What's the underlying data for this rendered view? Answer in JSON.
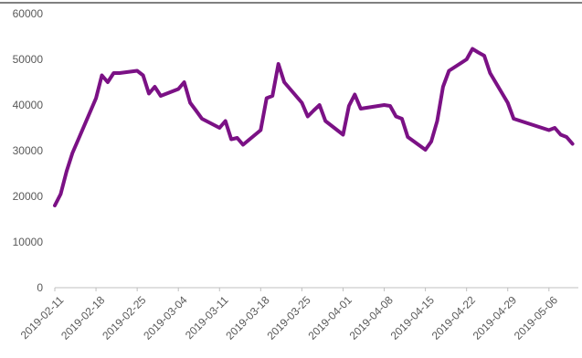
{
  "chart_data": {
    "type": "line",
    "title": "",
    "xlabel": "",
    "ylabel": "",
    "ylim": [
      0,
      60000
    ],
    "yticks": [
      0,
      10000,
      20000,
      30000,
      40000,
      50000,
      60000
    ],
    "y_tick_labels": [
      "0",
      "10000",
      "20000",
      "30000",
      "40000",
      "50000",
      "60000"
    ],
    "xlim": [
      "2019-02-11",
      "2019-05-11"
    ],
    "x_tick_labels": [
      "2019-02-11",
      "2019-02-18",
      "2019-02-25",
      "2019-03-04",
      "2019-03-11",
      "2019-03-18",
      "2019-03-25",
      "2019-04-01",
      "2019-04-08",
      "2019-04-15",
      "2019-04-22",
      "2019-04-29",
      "2019-05-06"
    ],
    "grid": false,
    "legend": "none",
    "line_color": "#7B1185",
    "series": [
      {
        "x": [
          "2019-02-11",
          "2019-02-12",
          "2019-02-13",
          "2019-02-14",
          "2019-02-15",
          "2019-02-18",
          "2019-02-19",
          "2019-02-20",
          "2019-02-21",
          "2019-02-22",
          "2019-02-25",
          "2019-02-26",
          "2019-02-27",
          "2019-02-28",
          "2019-03-01",
          "2019-03-04",
          "2019-03-05",
          "2019-03-06",
          "2019-03-07",
          "2019-03-08",
          "2019-03-11",
          "2019-03-12",
          "2019-03-13",
          "2019-03-14",
          "2019-03-15",
          "2019-03-18",
          "2019-03-19",
          "2019-03-20",
          "2019-03-21",
          "2019-03-22",
          "2019-03-25",
          "2019-03-26",
          "2019-03-27",
          "2019-03-28",
          "2019-03-29",
          "2019-04-01",
          "2019-04-02",
          "2019-04-03",
          "2019-04-04",
          "2019-04-08",
          "2019-04-09",
          "2019-04-10",
          "2019-04-11",
          "2019-04-12",
          "2019-04-15",
          "2019-04-16",
          "2019-04-17",
          "2019-04-18",
          "2019-04-19",
          "2019-04-22",
          "2019-04-23",
          "2019-04-24",
          "2019-04-25",
          "2019-04-26",
          "2019-04-29",
          "2019-04-30",
          "2019-05-06",
          "2019-05-07",
          "2019-05-08",
          "2019-05-09",
          "2019-05-10"
        ],
        "y": [
          18000,
          20500,
          25500,
          29500,
          32500,
          41500,
          46500,
          45000,
          47000,
          47000,
          47500,
          46500,
          42500,
          44000,
          42000,
          43500,
          45000,
          40500,
          38800,
          37000,
          35000,
          36500,
          32500,
          32800,
          31300,
          34500,
          41500,
          42000,
          49000,
          45000,
          40500,
          37500,
          38800,
          40000,
          36500,
          33500,
          39800,
          42300,
          39200,
          40000,
          39800,
          37500,
          37000,
          33000,
          30200,
          32000,
          36500,
          44000,
          47500,
          50000,
          52300,
          51500,
          50800,
          47000,
          40500,
          37000,
          34500,
          35000,
          33500,
          33000,
          31500
        ]
      }
    ]
  }
}
